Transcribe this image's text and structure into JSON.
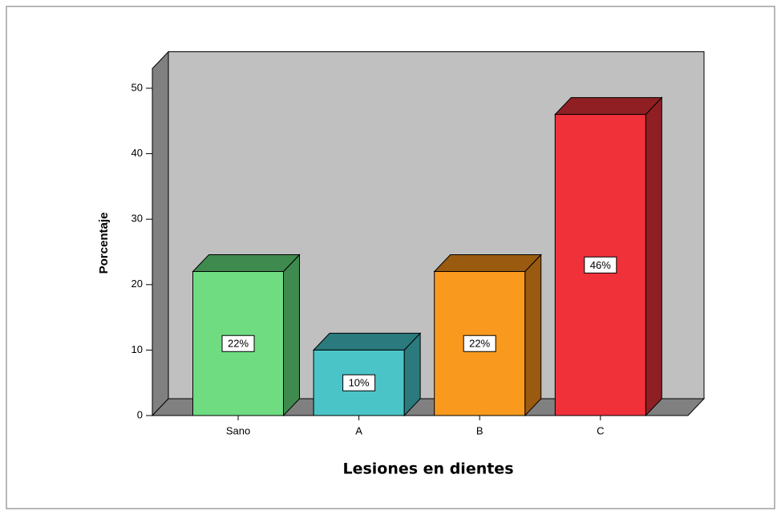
{
  "chart_data": {
    "type": "bar3d",
    "categories": [
      "Sano",
      "A",
      "B",
      "C"
    ],
    "values": [
      22,
      10,
      22,
      46
    ],
    "value_labels": [
      "22%",
      "10%",
      "22%",
      "46%"
    ],
    "colors": [
      "#6fdc82",
      "#4bc4c8",
      "#f99a1e",
      "#f0313a"
    ],
    "top_colors": [
      "#3f8a4e",
      "#2b7a7d",
      "#9a5a10",
      "#8f1f23"
    ],
    "x_label": "Lesiones en dientes",
    "y_label": "Porcentaje",
    "ylim": [
      0,
      53
    ],
    "yticks": [
      0,
      10,
      20,
      30,
      40,
      50
    ]
  }
}
